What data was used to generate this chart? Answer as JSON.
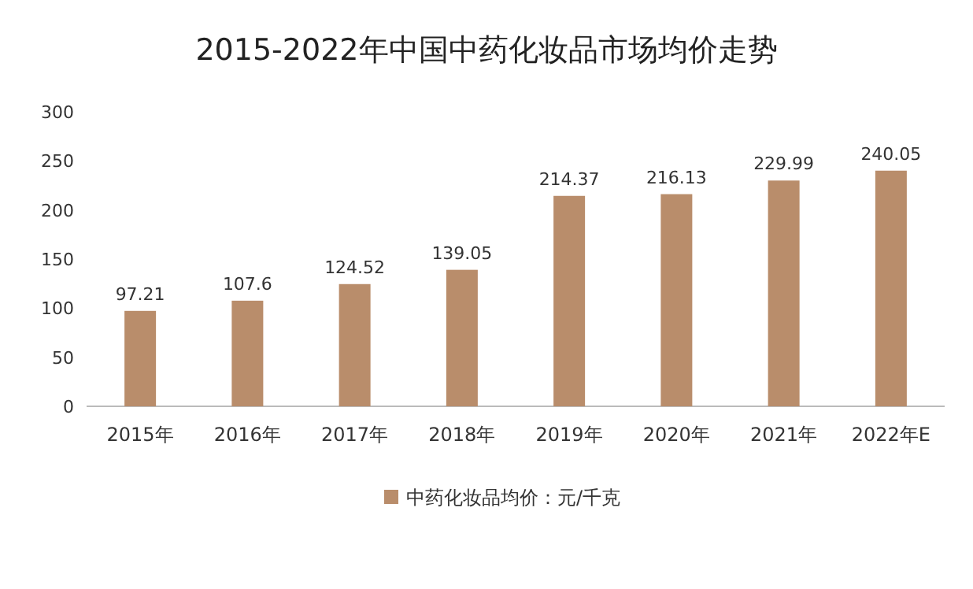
{
  "chart_data": {
    "type": "bar",
    "title": "2015-2022年中国中药化妆品市场均价走势",
    "categories": [
      "2015年",
      "2016年",
      "2017年",
      "2018年",
      "2019年",
      "2020年",
      "2021年",
      "2022年E"
    ],
    "series": [
      {
        "name": "中药化妆品均价：元/千克",
        "color": "#b98d6b",
        "values": [
          97.21,
          107.6,
          124.52,
          139.05,
          214.37,
          216.13,
          229.99,
          240.05
        ]
      }
    ],
    "ylim": [
      0,
      300
    ],
    "yticks": [
      0,
      50,
      100,
      150,
      200,
      250,
      300
    ],
    "data_labels": true,
    "legend": "bottom"
  }
}
